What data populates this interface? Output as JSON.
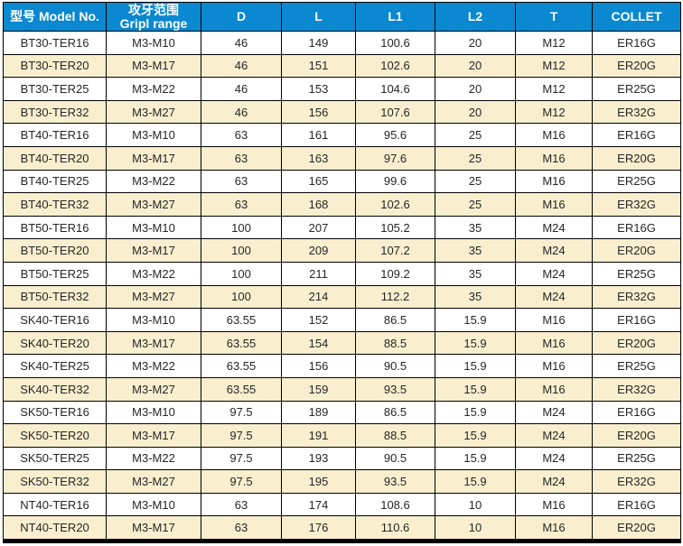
{
  "colors": {
    "header_background": "#0a88d0",
    "header_text": "#ffffff",
    "row_background": "#ffffff",
    "row_alternate_background": "#f9efcf",
    "grid_border": "#000000",
    "cell_text": "#262626"
  },
  "table": {
    "columns": [
      {
        "line1": "型号 Model No.",
        "line2": ""
      },
      {
        "line1": "攻牙范围",
        "line2": "Gripl range"
      },
      {
        "line1": "D",
        "line2": ""
      },
      {
        "line1": "L",
        "line2": ""
      },
      {
        "line1": "L1",
        "line2": ""
      },
      {
        "line1": "L2",
        "line2": ""
      },
      {
        "line1": "T",
        "line2": ""
      },
      {
        "line1": "COLLET",
        "line2": ""
      }
    ],
    "rows": [
      [
        "BT30-TER16",
        "M3-M10",
        "46",
        "149",
        "100.6",
        "20",
        "M12",
        "ER16G"
      ],
      [
        "BT30-TER20",
        "M3-M17",
        "46",
        "151",
        "102.6",
        "20",
        "M12",
        "ER20G"
      ],
      [
        "BT30-TER25",
        "M3-M22",
        "46",
        "153",
        "104.6",
        "20",
        "M12",
        "ER25G"
      ],
      [
        "BT30-TER32",
        "M3-M27",
        "46",
        "156",
        "107.6",
        "20",
        "M12",
        "ER32G"
      ],
      [
        "BT40-TER16",
        "M3-M10",
        "63",
        "161",
        "95.6",
        "25",
        "M16",
        "ER16G"
      ],
      [
        "BT40-TER20",
        "M3-M17",
        "63",
        "163",
        "97.6",
        "25",
        "M16",
        "ER20G"
      ],
      [
        "BT40-TER25",
        "M3-M22",
        "63",
        "165",
        "99.6",
        "25",
        "M16",
        "ER25G"
      ],
      [
        "BT40-TER32",
        "M3-M27",
        "63",
        "168",
        "102.6",
        "25",
        "M16",
        "ER32G"
      ],
      [
        "BT50-TER16",
        "M3-M10",
        "100",
        "207",
        "105.2",
        "35",
        "M24",
        "ER16G"
      ],
      [
        "BT50-TER20",
        "M3-M17",
        "100",
        "209",
        "107.2",
        "35",
        "M24",
        "ER20G"
      ],
      [
        "BT50-TER25",
        "M3-M22",
        "100",
        "211",
        "109.2",
        "35",
        "M24",
        "ER25G"
      ],
      [
        "BT50-TER32",
        "M3-M27",
        "100",
        "214",
        "112.2",
        "35",
        "M24",
        "ER32G"
      ],
      [
        "SK40-TER16",
        "M3-M10",
        "63.55",
        "152",
        "86.5",
        "15.9",
        "M16",
        "ER16G"
      ],
      [
        "SK40-TER20",
        "M3-M17",
        "63.55",
        "154",
        "88.5",
        "15.9",
        "M16",
        "ER20G"
      ],
      [
        "SK40-TER25",
        "M3-M22",
        "63.55",
        "156",
        "90.5",
        "15.9",
        "M16",
        "ER25G"
      ],
      [
        "SK40-TER32",
        "M3-M27",
        "63.55",
        "159",
        "93.5",
        "15.9",
        "M16",
        "ER32G"
      ],
      [
        "SK50-TER16",
        "M3-M10",
        "97.5",
        "189",
        "86.5",
        "15.9",
        "M24",
        "ER16G"
      ],
      [
        "SK50-TER20",
        "M3-M17",
        "97.5",
        "191",
        "88.5",
        "15.9",
        "M24",
        "ER20G"
      ],
      [
        "SK50-TER25",
        "M3-M22",
        "97.5",
        "193",
        "90.5",
        "15.9",
        "M24",
        "ER25G"
      ],
      [
        "SK50-TER32",
        "M3-M27",
        "97.5",
        "195",
        "93.5",
        "15.9",
        "M24",
        "ER32G"
      ],
      [
        "NT40-TER16",
        "M3-M10",
        "63",
        "174",
        "108.6",
        "10",
        "M16",
        "ER16G"
      ],
      [
        "NT40-TER20",
        "M3-M17",
        "63",
        "176",
        "110.6",
        "10",
        "M16",
        "ER20G"
      ]
    ]
  }
}
